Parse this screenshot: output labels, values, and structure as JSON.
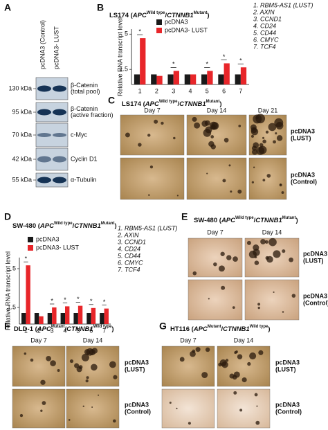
{
  "panel_labels": [
    "A",
    "B",
    "C",
    "D",
    "E",
    "F",
    "G"
  ],
  "blot": {
    "columns": [
      "pcDNA3 (Control)",
      "pcDNA3- LUST"
    ],
    "markers": [
      "130 kDa",
      "95 kDa",
      "70 kDa",
      "42 kDa",
      "55 kDa"
    ],
    "proteins": [
      [
        "β-Catenin",
        "(total pool)"
      ],
      [
        "β-Catenin",
        "(active fraction)"
      ],
      [
        "c-Myc"
      ],
      [
        "Cyclin D1"
      ],
      [
        "α-Tubulin"
      ]
    ]
  },
  "chart_data": [
    {
      "type": "bar",
      "title": {
        "prefix": "LS174 (",
        "gene1": "APC",
        "sup1": "Wild type",
        "sep": "/",
        "gene2": "CTNNB1",
        "sup2": "Mutant",
        "suffix": ")"
      },
      "y_label": "Relative RNA transcript level",
      "categories": [
        "1",
        "2",
        "3",
        "4",
        "5",
        "6",
        "7"
      ],
      "series": [
        {
          "name": "pcDNA3",
          "color": "#1a1a1a",
          "values": [
            1,
            1,
            1,
            1,
            1,
            1,
            1
          ]
        },
        {
          "name": "pcDNA3- LUST",
          "color": "#e8262a",
          "values": [
            4.6,
            0.85,
            1.35,
            1.0,
            1.35,
            2.1,
            1.7
          ]
        }
      ],
      "significance": [
        "*",
        null,
        "*",
        null,
        "*",
        "*",
        "*"
      ],
      "ylim": [
        0,
        5.5
      ],
      "yticks": [
        1.5,
        5
      ],
      "gene_list": [
        "1. RBM5-AS1 (LUST)",
        "2. AXIN",
        "3. CCND1",
        "4. CD24",
        "5. CD44",
        "6. CMYC",
        "7. TCF4"
      ]
    },
    {
      "type": "bar",
      "title": {
        "prefix": "SW-480 (",
        "gene1": "APC",
        "sup1": "Wild type",
        "sep": "/",
        "gene2": "CTNNB1",
        "sup2": "Mutant",
        "suffix": ")"
      },
      "y_label": "Relative RNA transcript level",
      "categories": [
        "1",
        "2",
        "3",
        "4",
        "5",
        "6",
        "7"
      ],
      "series": [
        {
          "name": "pcDNA3",
          "color": "#1a1a1a",
          "values": [
            1,
            1,
            1,
            1,
            1,
            1,
            1
          ]
        },
        {
          "name": "pcDNA3- LUST",
          "color": "#e8262a",
          "values": [
            5.3,
            0.7,
            1.5,
            1.6,
            1.65,
            1.45,
            1.4
          ]
        }
      ],
      "significance": [
        "*",
        null,
        "*",
        "*",
        "*",
        "*",
        "*"
      ],
      "ylim": [
        0,
        6
      ],
      "yticks": [
        1.5,
        5
      ],
      "gene_list": [
        "1. RBM5-AS1 (LUST)",
        "2. AXIN",
        "3. CCND1",
        "4. CD24",
        "5. CD44",
        "6. CMYC",
        "7. TCF4"
      ]
    }
  ],
  "photo_panels": [
    {
      "title": {
        "prefix": "LS174 (",
        "gene1": "APC",
        "sup1": "Wild type",
        "sep": "/",
        "gene2": "CTNNB1",
        "sup2": "Mutant",
        "suffix": ")"
      },
      "days": [
        "Day 7",
        "Day 14",
        "Day 21"
      ],
      "rows": [
        [
          "pcDNA3",
          "(LUST)"
        ],
        [
          "pcDNA3",
          "(Control)"
        ]
      ]
    },
    {
      "title": {
        "prefix": "SW-480 (",
        "gene1": "APC",
        "sup1": "Wild type",
        "sep": "/",
        "gene2": "CTNNB1",
        "sup2": "Mutant",
        "suffix": ")"
      },
      "days": [
        "Day 7",
        "Day 14"
      ],
      "rows": [
        [
          "pcDNA3",
          "(LUST)"
        ],
        [
          "pcDNA3",
          "(Control)"
        ]
      ]
    },
    {
      "title": {
        "prefix": "DLD-1 (",
        "gene1": "APC",
        "sup1": "Mutant",
        "sep": "/",
        "gene2": "CTNNB1",
        "sup2": "Wild type",
        "suffix": ")"
      },
      "days": [
        "Day 7",
        "Day 14"
      ],
      "rows": [
        [
          "pcDNA3",
          "(LUST)"
        ],
        [
          "pcDNA3",
          "(Control)"
        ]
      ]
    },
    {
      "title": {
        "prefix": "HT116 (",
        "gene1": "APC",
        "sup1": "Mutant",
        "sep": "/",
        "gene2": "CTNNB1",
        "sup2": "Wild type",
        "suffix": ")"
      },
      "days": [
        "Day 7",
        "Day 14"
      ],
      "rows": [
        [
          "pcDNA3",
          "(LUST)"
        ],
        [
          "pcDNA3",
          "(Control)"
        ]
      ]
    }
  ]
}
